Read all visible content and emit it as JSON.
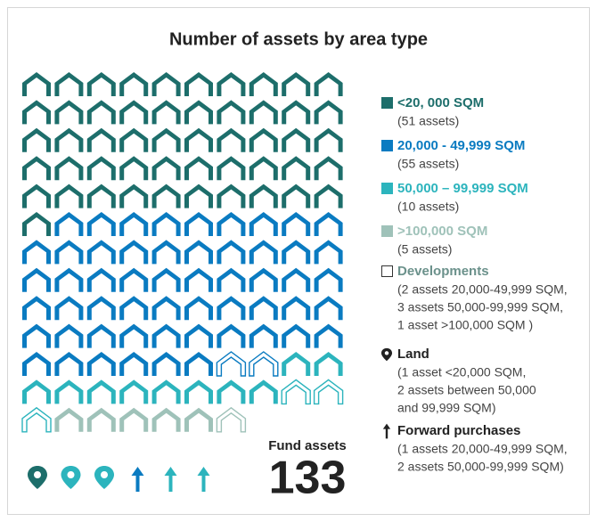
{
  "chart_data": {
    "type": "pictogram",
    "title": "Number of assets by area type",
    "series": [
      {
        "name": "<20, 000 SQM",
        "note": "(51 assets)",
        "color": "#1d6e6b",
        "value": 51
      },
      {
        "name": "20,000 - 49,999 SQM",
        "note": "(55 assets)",
        "color": "#0a7bc1",
        "value": 55
      },
      {
        "name": "50,000 – 99,999 SQM",
        "note": "(10 assets)",
        "color": "#2cb4bd",
        "value": 10
      },
      {
        "name": ">100,000 SQM",
        "note": "(5 assets)",
        "color": "#9fc2b9",
        "value": 5
      }
    ],
    "developments": {
      "name": "Developments",
      "note": [
        "(2 assets 20,000-49,999 SQM,",
        "3 assets 50,000-99,999 SQM,",
        "1 asset >100,000 SQM )"
      ],
      "counts": [
        0,
        2,
        3,
        1
      ]
    },
    "land": {
      "name": "Land",
      "note": [
        "(1 asset <20,000 SQM,",
        "2 assets between 50,000",
        "and 99,999 SQM)"
      ],
      "counts": [
        1,
        0,
        2,
        0
      ]
    },
    "forward_purchases": {
      "name": "Forward purchases",
      "note": [
        "(1 assets 20,000-49,999 SQM,",
        "2 assets 50,000-99,999 SQM)"
      ],
      "counts": [
        0,
        1,
        2,
        0
      ]
    },
    "total_label": "Fund assets",
    "total": 133
  }
}
